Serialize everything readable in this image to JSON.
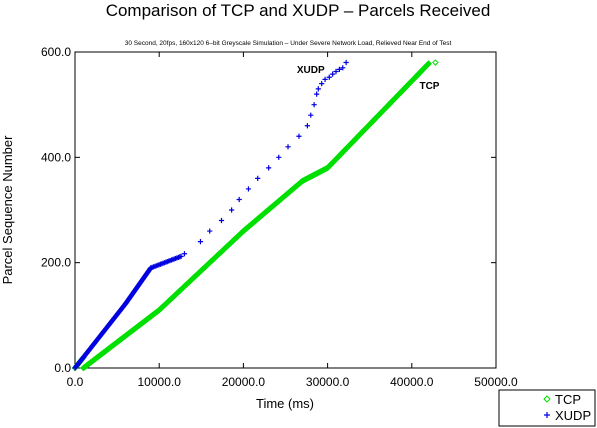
{
  "chart_data": {
    "type": "scatter",
    "title": "Comparison of TCP and XUDP – Parcels Received",
    "subtitle": "30 Second, 20fps, 160x120 6–bit Greyscale Simulation – Under Severe Network Load, Relieved Near End of Test",
    "xlabel": "Time (ms)",
    "ylabel": "Parcel Sequence Number",
    "xlim": [
      0,
      50000
    ],
    "ylim": [
      0,
      600
    ],
    "xticks": [
      0,
      10000,
      20000,
      30000,
      40000,
      50000
    ],
    "xtick_labels": [
      "0.0",
      "10000.0",
      "20000.0",
      "30000.0",
      "40000.0",
      "50000.0"
    ],
    "yticks": [
      0,
      200,
      400,
      600
    ],
    "ytick_labels": [
      "0.0",
      "200.0",
      "400.0",
      "600.0"
    ],
    "grid": false,
    "legend_position": "bottom-right outside",
    "annotations": [
      {
        "text": "XUDP",
        "x": 28000,
        "y": 560
      },
      {
        "text": "TCP",
        "x": 42100,
        "y": 530
      }
    ],
    "series": [
      {
        "name": "TCP",
        "marker": "diamond",
        "color": "#00e000",
        "segments": [
          {
            "x0": 0,
            "y0": 0,
            "x1": 1000,
            "y1": 20,
            "n": 12
          },
          {
            "x0": 1000,
            "y0": 0,
            "x1": 10000,
            "y1": 110,
            "n": 110
          },
          {
            "x0": 10000,
            "y0": 110,
            "x1": 20000,
            "y1": 260,
            "n": 150
          },
          {
            "x0": 20000,
            "y0": 260,
            "x1": 27000,
            "y1": 355,
            "n": 95
          },
          {
            "x0": 27000,
            "y0": 355,
            "x1": 30000,
            "y1": 380,
            "n": 25
          },
          {
            "x0": 30000,
            "y0": 380,
            "x1": 42000,
            "y1": 578,
            "n": 198
          }
        ],
        "extra_points": [
          [
            42800,
            580
          ]
        ]
      },
      {
        "name": "XUDP",
        "marker": "plus",
        "color": "#0000e0",
        "segments": [
          {
            "x0": 0,
            "y0": 0,
            "x1": 6000,
            "y1": 122,
            "n": 122
          },
          {
            "x0": 6000,
            "y0": 122,
            "x1": 9000,
            "y1": 190,
            "n": 68
          },
          {
            "x0": 9000,
            "y0": 190,
            "x1": 12600,
            "y1": 212,
            "n": 22
          }
        ],
        "points": [
          [
            13000,
            217
          ],
          [
            14900,
            240
          ],
          [
            16000,
            260
          ],
          [
            17400,
            280
          ],
          [
            18600,
            300
          ],
          [
            19500,
            320
          ],
          [
            20600,
            340
          ],
          [
            21700,
            360
          ],
          [
            23000,
            380
          ],
          [
            24200,
            400
          ],
          [
            25300,
            420
          ],
          [
            26600,
            440
          ],
          [
            27600,
            460
          ],
          [
            28000,
            480
          ],
          [
            28400,
            500
          ],
          [
            28700,
            520
          ],
          [
            28900,
            530
          ],
          [
            29300,
            540
          ],
          [
            29700,
            548
          ],
          [
            30200,
            552
          ],
          [
            30600,
            558
          ],
          [
            31000,
            563
          ],
          [
            31400,
            567
          ],
          [
            31800,
            570
          ],
          [
            32200,
            580
          ]
        ]
      }
    ]
  }
}
